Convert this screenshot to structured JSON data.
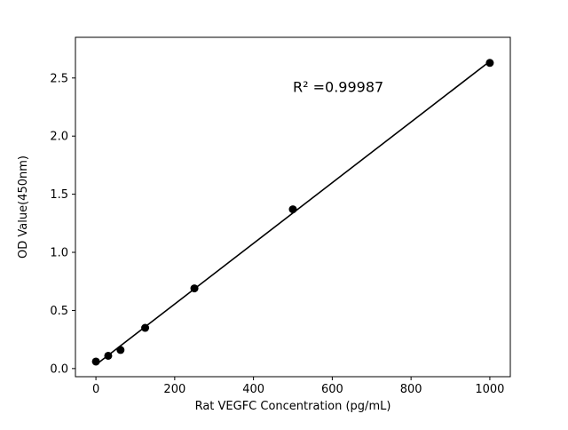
{
  "figure": {
    "background": "#ffffff"
  },
  "chart_data": {
    "type": "scatter",
    "title": "",
    "xlabel": "Rat VEGFC Concentration (pg/mL)",
    "ylabel": "OD Value(450nm)",
    "x": [
      0,
      31.25,
      62.5,
      125,
      250,
      500,
      1000
    ],
    "y": [
      0.06,
      0.11,
      0.16,
      0.35,
      0.69,
      1.37,
      2.63
    ],
    "fit_line": true,
    "annotation": {
      "text": "R² =0.99987",
      "x": 500,
      "y": 2.38
    },
    "xlim": [
      -52,
      1052
    ],
    "ylim": [
      -0.07,
      2.85
    ],
    "xticks": [
      0,
      200,
      400,
      600,
      800,
      1000
    ],
    "xtick_labels": [
      "0",
      "200",
      "400",
      "600",
      "800",
      "1000"
    ],
    "yticks": [
      0.0,
      0.5,
      1.0,
      1.5,
      2.0,
      2.5
    ],
    "ytick_labels": [
      "0.0",
      "0.5",
      "1.0",
      "1.5",
      "2.0",
      "2.5"
    ],
    "marker_color": "#000000",
    "line_color": "#000000",
    "axis_color": "#000000",
    "grid": false,
    "legend": null
  }
}
